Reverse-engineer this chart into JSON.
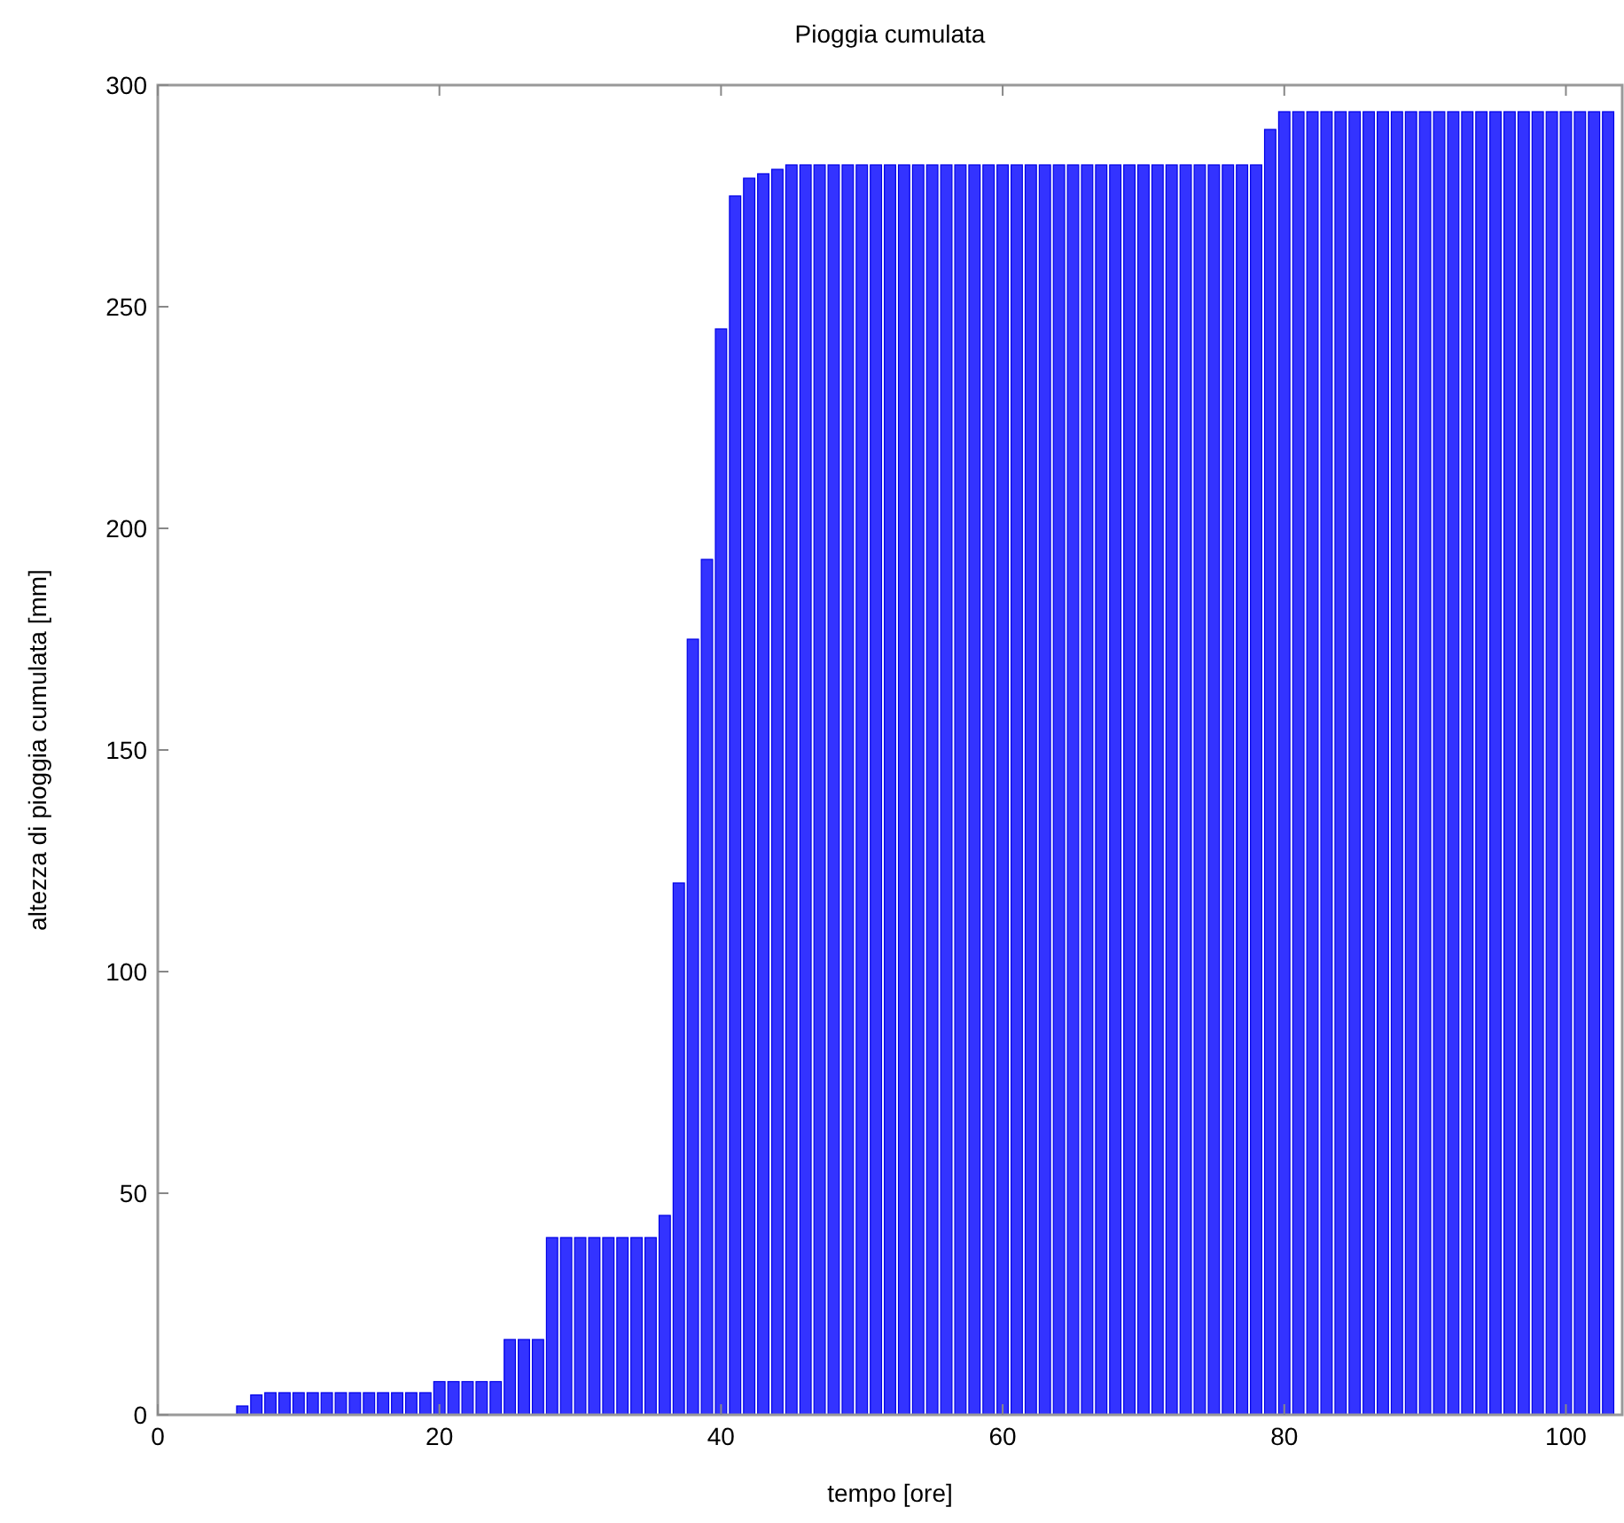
{
  "chart_data": {
    "type": "bar",
    "title": "Pioggia cumulata",
    "xlabel": "tempo [ore]",
    "ylabel": "altezza di pioggia cumulata [mm]",
    "x": [
      6,
      7,
      8,
      9,
      10,
      11,
      12,
      13,
      14,
      15,
      16,
      17,
      18,
      19,
      20,
      21,
      22,
      23,
      24,
      25,
      26,
      27,
      28,
      29,
      30,
      31,
      32,
      33,
      34,
      35,
      36,
      37,
      38,
      39,
      40,
      41,
      42,
      43,
      44,
      45,
      46,
      47,
      48,
      49,
      50,
      51,
      52,
      53,
      54,
      55,
      56,
      57,
      58,
      59,
      60,
      61,
      62,
      63,
      64,
      65,
      66,
      67,
      68,
      69,
      70,
      71,
      72,
      73,
      74,
      75,
      76,
      77,
      78,
      79,
      80,
      81,
      82,
      83,
      84,
      85,
      86,
      87,
      88,
      89,
      90,
      91,
      92,
      93,
      94,
      95,
      96,
      97,
      98,
      99,
      100,
      101,
      102,
      103
    ],
    "values": [
      2,
      4.5,
      5,
      5,
      5,
      5,
      5,
      5,
      5,
      5,
      5,
      5,
      5,
      5,
      7.5,
      7.5,
      7.5,
      7.5,
      7.5,
      17,
      17,
      17,
      40,
      40,
      40,
      40,
      40,
      40,
      40,
      40,
      45,
      120,
      175,
      193,
      245,
      275,
      279,
      280,
      281,
      282,
      282,
      282,
      282,
      282,
      282,
      282,
      282,
      282,
      282,
      282,
      282,
      282,
      282,
      282,
      282,
      282,
      282,
      282,
      282,
      282,
      282,
      282,
      282,
      282,
      282,
      282,
      282,
      282,
      282,
      282,
      282,
      282,
      282,
      290,
      294,
      294,
      294,
      294,
      294,
      294,
      294,
      294,
      294,
      294,
      294,
      294,
      294,
      294,
      294,
      294,
      294,
      294,
      294,
      294,
      294,
      294,
      294,
      294
    ],
    "color": "#3333ff",
    "xlim": [
      0,
      104
    ],
    "xticks": [
      0,
      20,
      40,
      60,
      80,
      100
    ],
    "ylim": [
      0,
      300
    ],
    "yticks": [
      0,
      50,
      100,
      150,
      200,
      250,
      300
    ],
    "grid": false
  }
}
